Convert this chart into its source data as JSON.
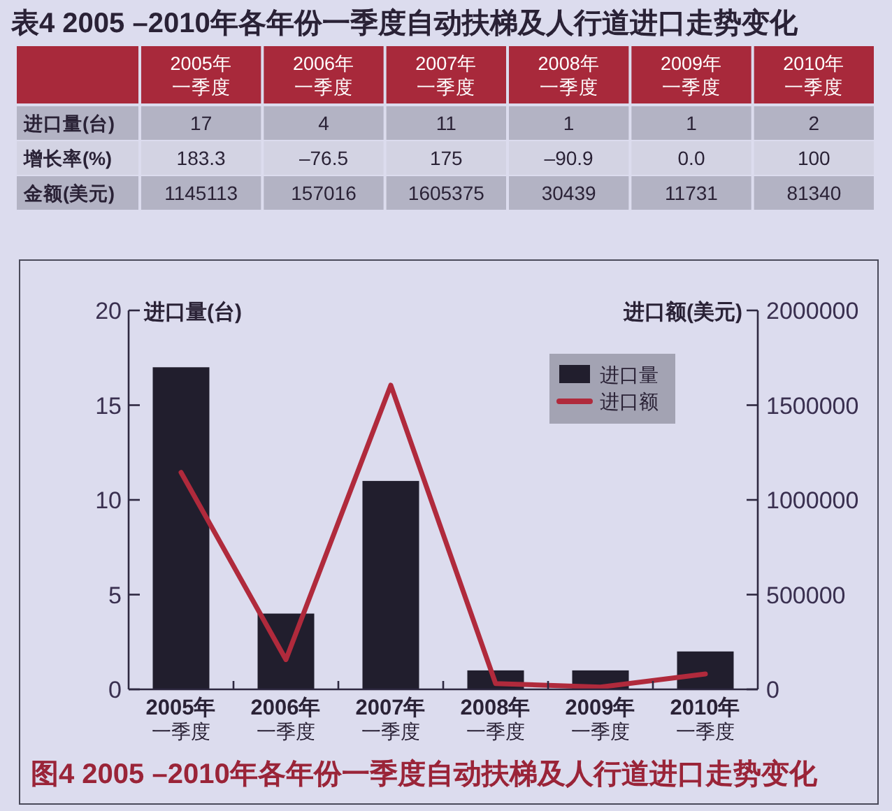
{
  "chart_data": [
    {
      "type": "heatmap",
      "title": "表4 2005 –2010年各年份一季度自动扶梯及人行道进口走势变化",
      "categories": [
        "2005年一季度",
        "2006年一季度",
        "2007年一季度",
        "2008年一季度",
        "2009年一季度",
        "2010年一季度"
      ],
      "y_categories": [
        "进口量(台)",
        "增长率(%)",
        "金额(美元)"
      ],
      "cells": [
        [
          17,
          4,
          11,
          1,
          1,
          2
        ],
        [
          183.3,
          -76.5,
          175,
          -90.9,
          0.0,
          100
        ],
        [
          1145113,
          157016,
          1605375,
          30439,
          11731,
          81340
        ]
      ],
      "cell_labels": [
        [
          "17",
          "4",
          "11",
          "1",
          "1",
          "2"
        ],
        [
          "183.3",
          "–76.5",
          "175",
          "–90.9",
          "0.0",
          "100"
        ],
        [
          "1145113",
          "157016",
          "1605375",
          "30439",
          "11731",
          "81340"
        ]
      ],
      "data_labels": true
    },
    {
      "type": "bar",
      "title": "图4 2005 –2010年各年份一季度自动扶梯及人行道进口走势变化",
      "categories": [
        "2005年一季度",
        "2006年一季度",
        "2007年一季度",
        "2008年一季度",
        "2009年一季度",
        "2010年一季度"
      ],
      "series": [
        {
          "name": "进口量",
          "type": "bar",
          "color": "#211e2d",
          "values": [
            17,
            4,
            11,
            1,
            1,
            2
          ]
        },
        {
          "name": "进口额",
          "type": "line",
          "axis": "y2",
          "color": "#b02a3c",
          "values": [
            1145113,
            157016,
            1605375,
            30439,
            11731,
            81340
          ]
        }
      ],
      "ylabel": "进口量(台)",
      "y2label": "进口额(美元)",
      "ylim": [
        0,
        20
      ],
      "yticks": [
        0,
        5,
        10,
        15,
        20
      ],
      "y2lim": [
        0,
        2000000
      ],
      "y2ticks": [
        0,
        500000,
        1000000,
        1500000,
        2000000
      ],
      "legend": "top right",
      "grid": false
    }
  ]
}
